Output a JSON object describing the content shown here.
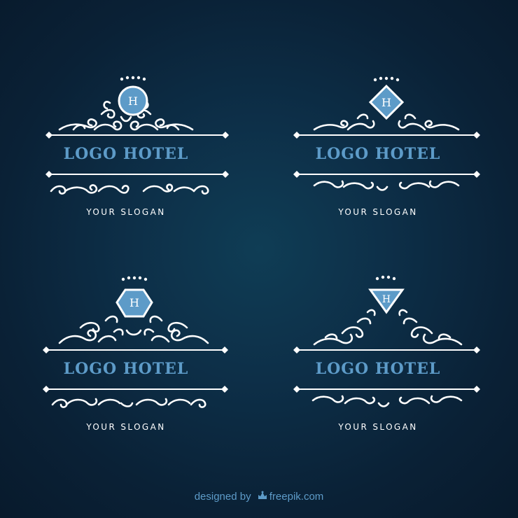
{
  "colors": {
    "background": "#0b2237",
    "accent": "#5d9bc8",
    "ornament": "#ffffff"
  },
  "logos": [
    {
      "title": "LOGO HOTEL",
      "slogan": "YOUR SLOGAN",
      "emblem_letter": "H",
      "emblem_shape": "circle"
    },
    {
      "title": "LOGO HOTEL",
      "slogan": "YOUR SLOGAN",
      "emblem_letter": "H",
      "emblem_shape": "diamond"
    },
    {
      "title": "LOGO HOTEL",
      "slogan": "YOUR SLOGAN",
      "emblem_letter": "H",
      "emblem_shape": "hexagon"
    },
    {
      "title": "LOGO HOTEL",
      "slogan": "YOUR SLOGAN",
      "emblem_letter": "H",
      "emblem_shape": "triangle"
    }
  ],
  "credit": {
    "prefix": "designed by",
    "icon": "freepik-crown-icon",
    "brand": "freepik.com"
  }
}
